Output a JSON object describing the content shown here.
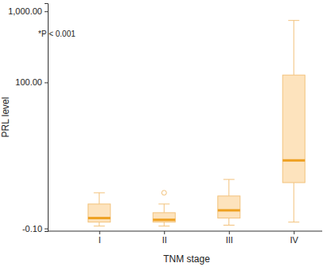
{
  "chart_data": {
    "type": "box",
    "annotation": "*P < 0.001",
    "x_label": "TNM stage",
    "y_label": "PRL level",
    "categories": [
      "I",
      "II",
      "III",
      "IV"
    ],
    "min": [
      -0.02,
      -0.02,
      0.01,
      0.115
    ],
    "q1": [
      0.115,
      0.115,
      0.27,
      2.99
    ],
    "median": [
      0.27,
      0.2,
      0.63,
      7.16
    ],
    "q3": [
      1.0,
      0.51,
      1.59,
      127
    ],
    "max": [
      1.87,
      1.0,
      3.42,
      744
    ],
    "outliers": [
      [],
      [
        1.87
      ],
      [],
      []
    ],
    "color": "#fde3bd",
    "log": "y",
    "ylim": [
      -0.2,
      1300
    ],
    "yticks": [
      {
        "value": -0.1,
        "label": "-0.10"
      },
      {
        "value": 100,
        "label": "100.00"
      },
      {
        "value": 1000,
        "label": "1,000.00"
      }
    ]
  }
}
